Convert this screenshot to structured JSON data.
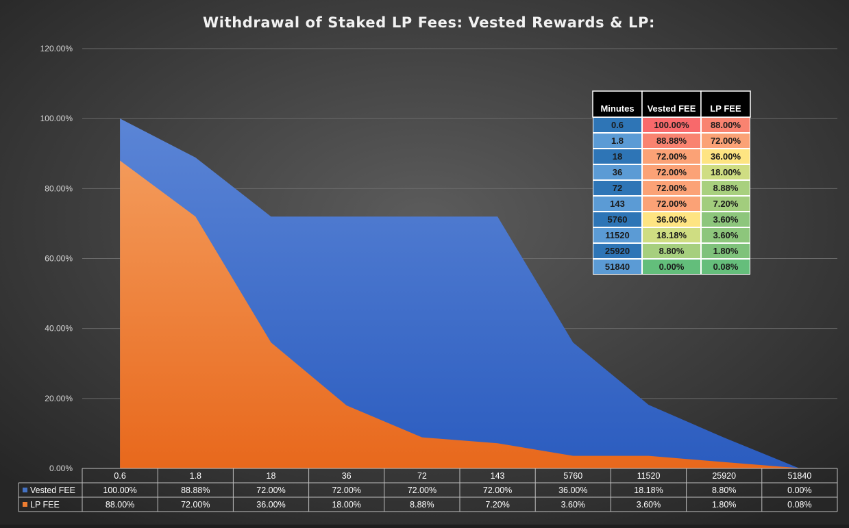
{
  "chart_data": {
    "type": "area",
    "title": "Withdrawal of Staked LP Fees: Vested Rewards & LP:",
    "categories": [
      "0.6",
      "1.8",
      "18",
      "36",
      "72",
      "143",
      "5760",
      "11520",
      "25920",
      "51840"
    ],
    "series": [
      {
        "name": "Vested FEE",
        "color": "#4472c4",
        "values": [
          100.0,
          88.88,
          72.0,
          72.0,
          72.0,
          72.0,
          36.0,
          18.18,
          8.8,
          0.0
        ],
        "labels": [
          "100.00%",
          "88.88%",
          "72.00%",
          "72.00%",
          "72.00%",
          "72.00%",
          "36.00%",
          "18.18%",
          "8.80%",
          "0.00%"
        ]
      },
      {
        "name": "LP FEE",
        "color": "#ed7d31",
        "values": [
          88.0,
          72.0,
          36.0,
          18.0,
          8.88,
          7.2,
          3.6,
          3.6,
          1.8,
          0.08
        ],
        "labels": [
          "88.00%",
          "72.00%",
          "36.00%",
          "18.00%",
          "8.88%",
          "7.20%",
          "3.60%",
          "3.60%",
          "1.80%",
          "0.08%"
        ]
      }
    ],
    "ylim": [
      0,
      120
    ],
    "ytick_values": [
      0,
      20,
      40,
      60,
      80,
      100,
      120
    ],
    "ytick_labels": [
      "0.00%",
      "20.00%",
      "40.00%",
      "60.00%",
      "80.00%",
      "100.00%",
      "120.00%"
    ],
    "grid": true,
    "data_table": true,
    "legend": "in data table"
  },
  "overlay_table": {
    "headers": [
      "Minutes",
      "Vested FEE",
      "LP FEE"
    ],
    "rows": [
      {
        "minutes": "0.6",
        "vested": "100.00%",
        "lp": "88.00%",
        "vested_color": "#f8696b",
        "lp_color": "#f98370"
      },
      {
        "minutes": "1.8",
        "vested": "88.88%",
        "lp": "72.00%",
        "vested_color": "#f98370",
        "lp_color": "#fba276"
      },
      {
        "minutes": "18",
        "vested": "72.00%",
        "lp": "36.00%",
        "vested_color": "#fba276",
        "lp_color": "#fee482"
      },
      {
        "minutes": "36",
        "vested": "72.00%",
        "lp": "18.00%",
        "vested_color": "#fba276",
        "lp_color": "#cfdd82"
      },
      {
        "minutes": "72",
        "vested": "72.00%",
        "lp": "8.88%",
        "vested_color": "#fba276",
        "lp_color": "#a8d07e"
      },
      {
        "minutes": "143",
        "vested": "72.00%",
        "lp": "7.20%",
        "vested_color": "#fba276",
        "lp_color": "#a2cd7d"
      },
      {
        "minutes": "5760",
        "vested": "36.00%",
        "lp": "3.60%",
        "vested_color": "#fee482",
        "lp_color": "#8dc67c"
      },
      {
        "minutes": "11520",
        "vested": "18.18%",
        "lp": "3.60%",
        "vested_color": "#cfdd82",
        "lp_color": "#8dc67c"
      },
      {
        "minutes": "25920",
        "vested": "8.80%",
        "lp": "1.80%",
        "vested_color": "#a6cf7e",
        "lp_color": "#7fc27b"
      },
      {
        "minutes": "51840",
        "vested": "0.00%",
        "lp": "0.08%",
        "vested_color": "#63be7b",
        "lp_color": "#65be7b"
      }
    ],
    "minutes_colors": [
      "#2e75b6",
      "#5b9bd5"
    ]
  },
  "colors": {
    "background_center": "#595959",
    "background_edge": "#262626",
    "gridline": "#6b6b6b",
    "table_border": "#bfbfbf"
  }
}
